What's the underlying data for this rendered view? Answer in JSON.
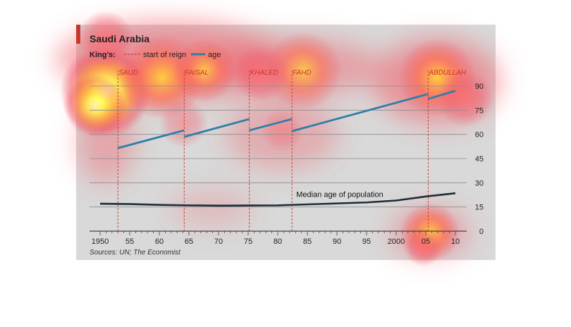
{
  "chart_data": {
    "type": "line",
    "title": "Saudi Arabia",
    "legend": {
      "label": "King's:",
      "items": [
        {
          "label": "start of reign",
          "style": "dashed",
          "color": "#c9372c"
        },
        {
          "label": "age",
          "style": "solid",
          "color": "#2e7fa8"
        }
      ]
    },
    "xlim": [
      1948,
      2012
    ],
    "ylim": [
      0,
      100
    ],
    "x_ticks": [
      1950,
      1955,
      1960,
      1965,
      1970,
      1975,
      1980,
      1985,
      1990,
      1995,
      2000,
      2005,
      2010
    ],
    "x_tick_labels": [
      "1950",
      "55",
      "60",
      "65",
      "70",
      "75",
      "80",
      "85",
      "90",
      "95",
      "2000",
      "05",
      "10"
    ],
    "y_ticks": [
      0,
      15,
      30,
      45,
      60,
      75,
      90
    ],
    "y_tick_labels": [
      "0",
      "15",
      "30",
      "45",
      "60",
      "75",
      "90"
    ],
    "grid": true,
    "y_axis_side": "right",
    "reigns": [
      {
        "name": "SAUD",
        "start": 1953.0
      },
      {
        "name": "FAISAL",
        "start": 1964.2
      },
      {
        "name": "KHALED",
        "start": 1975.2
      },
      {
        "name": "FAHD",
        "start": 1982.4
      },
      {
        "name": "ABDULLAH",
        "start": 2005.4
      }
    ],
    "series": [
      {
        "kind": "king-age",
        "values": [
          [
            1953.0,
            51.5
          ],
          [
            1964.2,
            62.5
          ]
        ]
      },
      {
        "kind": "king-age",
        "values": [
          [
            1964.2,
            58.5
          ],
          [
            1975.2,
            69.5
          ]
        ]
      },
      {
        "kind": "king-age",
        "values": [
          [
            1975.2,
            62.5
          ],
          [
            1982.4,
            69.5
          ]
        ]
      },
      {
        "kind": "king-age",
        "values": [
          [
            1982.4,
            62.0
          ],
          [
            2005.4,
            85.0
          ]
        ]
      },
      {
        "kind": "king-age",
        "values": [
          [
            2005.4,
            82.0
          ],
          [
            2010.0,
            87.0
          ]
        ]
      },
      {
        "name": "Median age of population",
        "kind": "median",
        "values": [
          [
            1950,
            17.0
          ],
          [
            1955,
            16.8
          ],
          [
            1960,
            16.3
          ],
          [
            1965,
            16.0
          ],
          [
            1970,
            15.8
          ],
          [
            1975,
            15.9
          ],
          [
            1980,
            16.0
          ],
          [
            1985,
            16.6
          ],
          [
            1990,
            17.2
          ],
          [
            1995,
            17.8
          ],
          [
            2000,
            19.0
          ],
          [
            2005,
            21.5
          ],
          [
            2010,
            23.5
          ]
        ]
      }
    ],
    "annotations": [
      {
        "text": "Median age of population",
        "x": 1985.5,
        "y": 22.5
      }
    ],
    "source": "Sources: UN; The Economist"
  },
  "colors": {
    "panel": "#d8d8d8",
    "red_accent": "#c9372c",
    "king_line": "#2e7fa8",
    "median_line": "#1c2c38",
    "grid": "#8d8d8d"
  }
}
